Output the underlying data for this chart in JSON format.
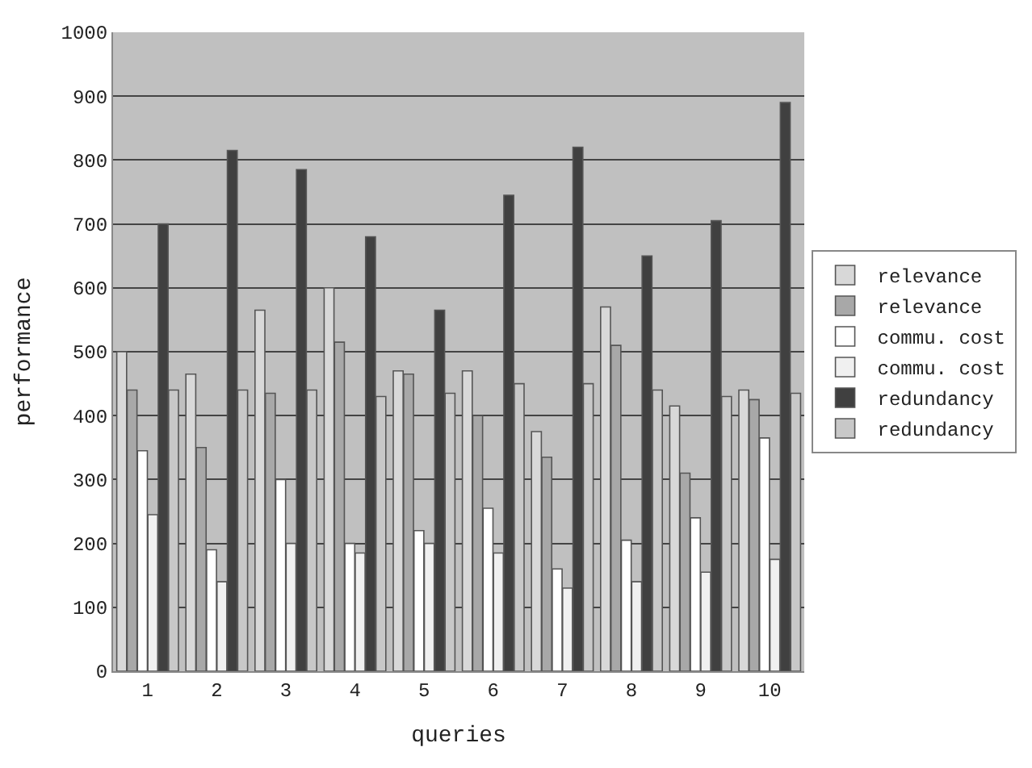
{
  "chart_data": {
    "type": "bar",
    "xlabel": "queries",
    "ylabel": "performance",
    "categories": [
      "1",
      "2",
      "3",
      "4",
      "5",
      "6",
      "7",
      "8",
      "9",
      "10"
    ],
    "series": [
      {
        "name": "relevance",
        "color": "#d8d8d8",
        "values": [
          500,
          465,
          565,
          600,
          470,
          470,
          375,
          570,
          415,
          440
        ]
      },
      {
        "name": "relevance",
        "color": "#a8a8a8",
        "values": [
          440,
          350,
          435,
          515,
          465,
          400,
          335,
          510,
          310,
          425
        ]
      },
      {
        "name": "commu. cost",
        "color": "#ffffff",
        "values": [
          345,
          190,
          300,
          200,
          220,
          255,
          160,
          205,
          240,
          365
        ]
      },
      {
        "name": "commu. cost",
        "color": "#f0f0f0",
        "values": [
          245,
          140,
          200,
          185,
          200,
          185,
          130,
          140,
          155,
          175
        ]
      },
      {
        "name": "redundancy",
        "color": "#404040",
        "values": [
          700,
          815,
          785,
          680,
          565,
          745,
          820,
          650,
          705,
          890
        ]
      },
      {
        "name": "redundancy",
        "color": "#c8c8c8",
        "values": [
          440,
          440,
          440,
          430,
          435,
          450,
          450,
          440,
          430,
          435
        ]
      }
    ],
    "ylim": [
      0,
      1000
    ],
    "yticks": [
      0,
      100,
      200,
      300,
      400,
      500,
      600,
      700,
      800,
      900,
      1000
    ],
    "grid": "y",
    "legend": "right"
  }
}
